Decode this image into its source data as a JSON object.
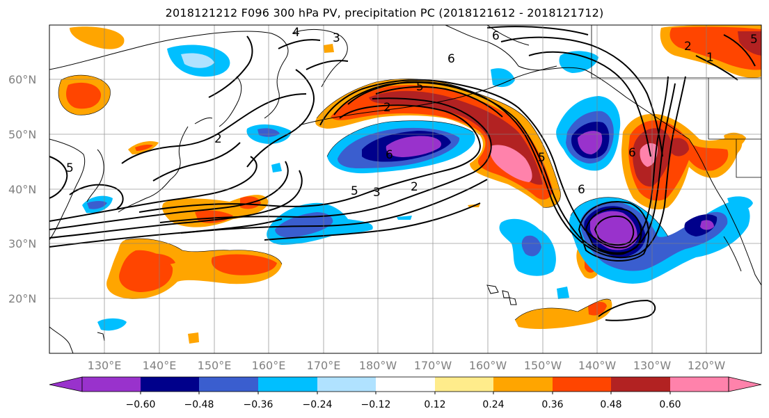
{
  "title": "2018121212 F096 300 hPa PV, precipitation PC (2018121612 - 2018121712)",
  "lat_labels": [
    "60°N",
    "50°N",
    "40°N",
    "30°N",
    "20°N"
  ],
  "lon_labels": [
    "130°E",
    "140°E",
    "150°E",
    "160°E",
    "170°E",
    "180°W",
    "170°W",
    "160°W",
    "150°W",
    "140°W",
    "130°W",
    "120°W"
  ],
  "colorbar": {
    "colors": [
      "#9932cc",
      "#00008b",
      "#3a5ecf",
      "#00bfff",
      "#b0e2ff",
      "#ffffff",
      "#ffec8b",
      "#ffa500",
      "#ff4500",
      "#b22222",
      "#ff82ab"
    ],
    "ticks": [
      "−0.60",
      "−0.48",
      "−0.36",
      "−0.24",
      "−0.12",
      "0.12",
      "0.24",
      "0.36",
      "0.48",
      "0.60"
    ]
  },
  "pv_labels": [
    "4",
    "3",
    "6",
    "6",
    "5",
    "2",
    "2",
    "5",
    "3",
    "2",
    "5",
    "6",
    "5",
    "6",
    "5",
    "2",
    "1",
    "6"
  ]
}
